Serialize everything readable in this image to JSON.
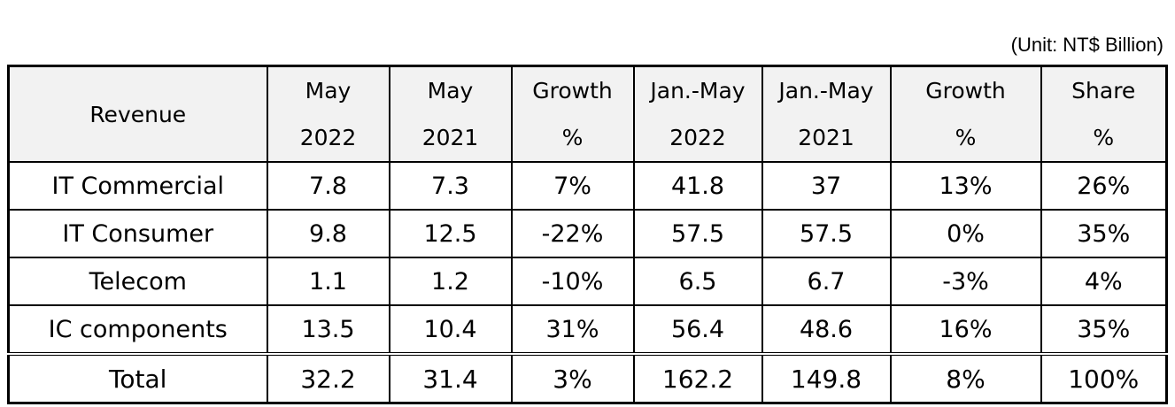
{
  "unit_note": "(Unit: NT$ Billion)",
  "chart_data": {
    "type": "table",
    "columns": [
      {
        "line1": "Revenue",
        "line2": ""
      },
      {
        "line1": "May",
        "line2": "2022"
      },
      {
        "line1": "May",
        "line2": "2021"
      },
      {
        "line1": "Growth",
        "line2": "%"
      },
      {
        "line1": "Jan.-May",
        "line2": "2022"
      },
      {
        "line1": "Jan.-May",
        "line2": "2021"
      },
      {
        "line1": "Growth",
        "line2": "%"
      },
      {
        "line1": "Share",
        "line2": "%"
      }
    ],
    "rows": [
      {
        "label": "IT Commercial",
        "cells": [
          "7.8",
          "7.3",
          "7%",
          "41.8",
          "37",
          "13%",
          "26%"
        ]
      },
      {
        "label": "IT Consumer",
        "cells": [
          "9.8",
          "12.5",
          "-22%",
          "57.5",
          "57.5",
          "0%",
          "35%"
        ]
      },
      {
        "label": "Telecom",
        "cells": [
          "1.1",
          "1.2",
          "-10%",
          "6.5",
          "6.7",
          "-3%",
          "4%"
        ]
      },
      {
        "label": "IC components",
        "cells": [
          "13.5",
          "10.4",
          "31%",
          "56.4",
          "48.6",
          "16%",
          "35%"
        ]
      }
    ],
    "total": {
      "label": "Total",
      "cells": [
        "32.2",
        "31.4",
        "3%",
        "162.2",
        "149.8",
        "8%",
        "100%"
      ]
    }
  }
}
